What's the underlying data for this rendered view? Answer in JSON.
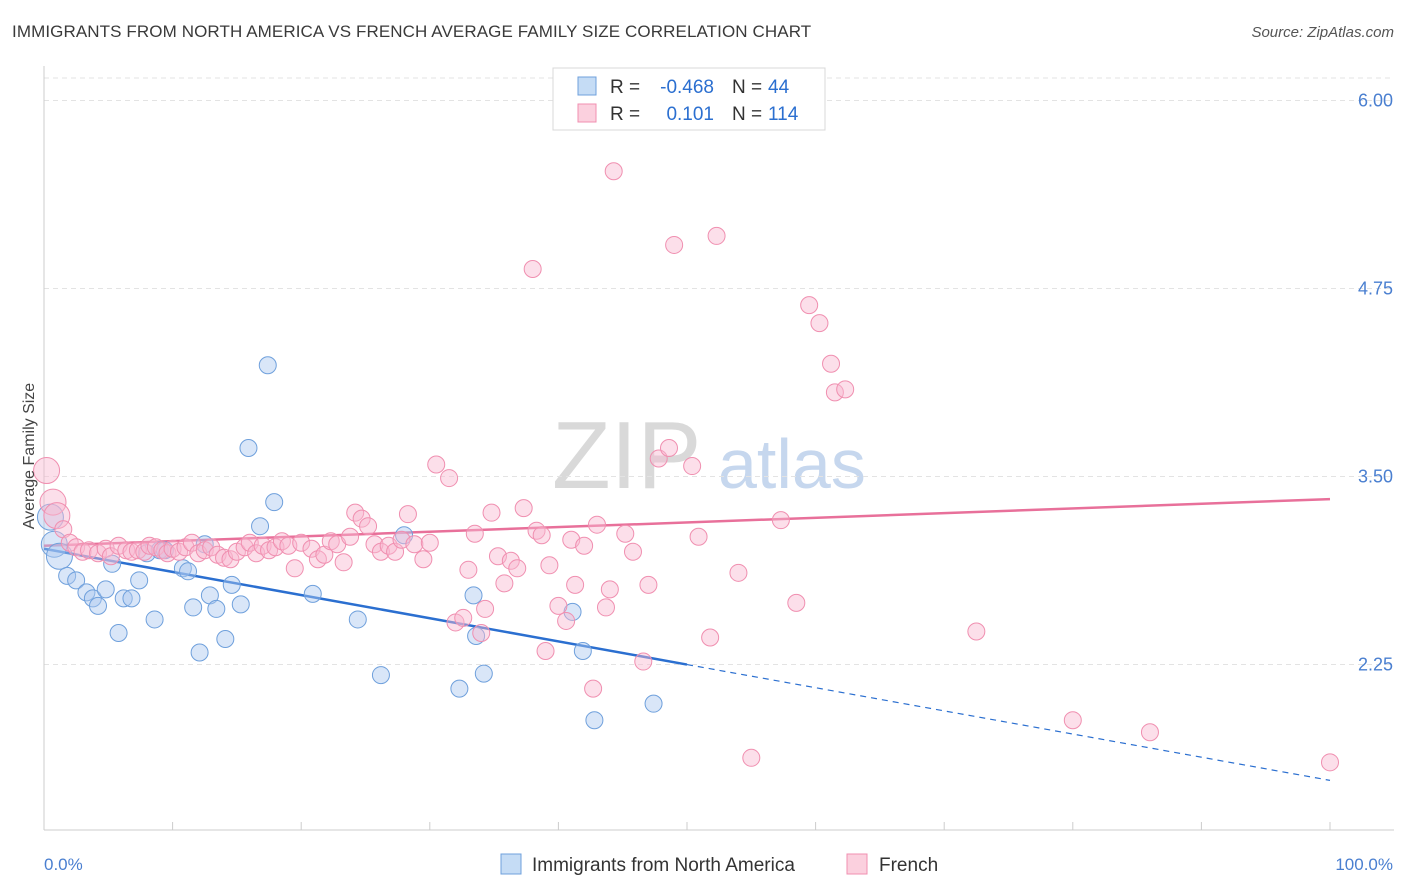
{
  "header": {
    "title": "IMMIGRANTS FROM NORTH AMERICA VS FRENCH AVERAGE FAMILY SIZE CORRELATION CHART",
    "source": "Source: ZipAtlas.com"
  },
  "watermark": {
    "zip": "ZIP",
    "atlas": "atlas"
  },
  "legend_stats": [
    {
      "r_label": "R =",
      "r_value": "-0.468",
      "n_label": "N =",
      "n_value": "44"
    },
    {
      "r_label": "R =",
      "r_value": "0.101",
      "n_label": "N =",
      "n_value": "114"
    }
  ],
  "colors": {
    "blue": "#6fa0dc",
    "blue_line": "#2b6fd0",
    "pink": "#f08fb0",
    "pink_line": "#e8709a",
    "tick_label": "#4a7fd0"
  },
  "chart_data": {
    "type": "scatter",
    "title": "IMMIGRANTS FROM NORTH AMERICA VS FRENCH AVERAGE FAMILY SIZE CORRELATION CHART",
    "xlabel": "",
    "ylabel": "Average Family Size",
    "xlim": [
      0,
      100
    ],
    "ylim": [
      1.15,
      6.15
    ],
    "x_tick_labels": [
      "0.0%",
      "100.0%"
    ],
    "y_ticks": [
      2.25,
      3.5,
      4.75,
      6.0
    ],
    "y_tick_labels": [
      "2.25",
      "3.50",
      "4.75",
      "6.00"
    ],
    "grid": true,
    "legend_position": "bottom-center",
    "series": [
      {
        "name": "Immigrants from North America",
        "color": "#6fa0dc",
        "trend": {
          "x": [
            0,
            50
          ],
          "y": [
            3.02,
            2.25
          ],
          "dashed_to": {
            "x": 100,
            "y": 1.48
          }
        },
        "points": [
          [
            0.5,
            3.23
          ],
          [
            0.8,
            3.05
          ],
          [
            1.2,
            2.97
          ],
          [
            1.8,
            2.84
          ],
          [
            2.5,
            2.81
          ],
          [
            3.3,
            2.73
          ],
          [
            3.8,
            2.69
          ],
          [
            4.2,
            2.64
          ],
          [
            4.8,
            2.75
          ],
          [
            5.3,
            2.92
          ],
          [
            5.8,
            2.46
          ],
          [
            6.2,
            2.69
          ],
          [
            6.8,
            2.69
          ],
          [
            7.4,
            2.81
          ],
          [
            8.0,
            2.99
          ],
          [
            8.6,
            2.55
          ],
          [
            9.0,
            3.01
          ],
          [
            9.4,
            3.01
          ],
          [
            10.8,
            2.89
          ],
          [
            11.2,
            2.87
          ],
          [
            11.6,
            2.63
          ],
          [
            12.1,
            2.33
          ],
          [
            12.5,
            3.05
          ],
          [
            12.9,
            2.71
          ],
          [
            13.4,
            2.62
          ],
          [
            14.6,
            2.78
          ],
          [
            14.1,
            2.42
          ],
          [
            15.3,
            2.65
          ],
          [
            15.9,
            3.69
          ],
          [
            16.8,
            3.17
          ],
          [
            17.4,
            4.24
          ],
          [
            17.9,
            3.33
          ],
          [
            20.9,
            2.72
          ],
          [
            24.4,
            2.55
          ],
          [
            26.2,
            2.18
          ],
          [
            28.0,
            3.11
          ],
          [
            32.3,
            2.09
          ],
          [
            33.4,
            2.71
          ],
          [
            33.6,
            2.44
          ],
          [
            34.2,
            2.19
          ],
          [
            41.1,
            2.6
          ],
          [
            41.9,
            2.34
          ],
          [
            42.8,
            1.88
          ],
          [
            47.4,
            1.99
          ]
        ]
      },
      {
        "name": "French",
        "color": "#f08fb0",
        "trend": {
          "x": [
            0,
            100
          ],
          "y": [
            3.04,
            3.35
          ]
        },
        "points": [
          [
            0.2,
            3.54
          ],
          [
            0.7,
            3.33
          ],
          [
            1.0,
            3.24
          ],
          [
            1.5,
            3.15
          ],
          [
            2.0,
            3.06
          ],
          [
            2.5,
            3.03
          ],
          [
            3.0,
            3.0
          ],
          [
            3.5,
            3.01
          ],
          [
            4.2,
            2.99
          ],
          [
            4.8,
            3.02
          ],
          [
            5.2,
            2.97
          ],
          [
            5.8,
            3.04
          ],
          [
            6.4,
            3.01
          ],
          [
            6.8,
            3.0
          ],
          [
            7.3,
            3.01
          ],
          [
            7.8,
            3.0
          ],
          [
            8.2,
            3.04
          ],
          [
            8.7,
            3.03
          ],
          [
            9.2,
            3.01
          ],
          [
            9.6,
            2.99
          ],
          [
            10.0,
            3.02
          ],
          [
            10.5,
            3.0
          ],
          [
            11.0,
            3.03
          ],
          [
            11.5,
            3.06
          ],
          [
            12.0,
            2.99
          ],
          [
            12.5,
            3.01
          ],
          [
            13.0,
            3.03
          ],
          [
            13.5,
            2.98
          ],
          [
            14.0,
            2.96
          ],
          [
            14.5,
            2.95
          ],
          [
            15.0,
            3.0
          ],
          [
            15.6,
            3.03
          ],
          [
            16.0,
            3.06
          ],
          [
            16.5,
            2.99
          ],
          [
            17.0,
            3.04
          ],
          [
            17.5,
            3.01
          ],
          [
            18.0,
            3.03
          ],
          [
            18.5,
            3.07
          ],
          [
            19.0,
            3.04
          ],
          [
            19.5,
            2.89
          ],
          [
            20.0,
            3.06
          ],
          [
            20.8,
            3.02
          ],
          [
            21.3,
            2.95
          ],
          [
            21.8,
            2.98
          ],
          [
            22.3,
            3.07
          ],
          [
            22.8,
            3.05
          ],
          [
            23.3,
            2.93
          ],
          [
            23.8,
            3.1
          ],
          [
            24.2,
            3.26
          ],
          [
            24.7,
            3.22
          ],
          [
            25.2,
            3.17
          ],
          [
            25.7,
            3.05
          ],
          [
            26.2,
            3.0
          ],
          [
            26.8,
            3.04
          ],
          [
            27.3,
            3.0
          ],
          [
            27.8,
            3.08
          ],
          [
            28.3,
            3.25
          ],
          [
            28.8,
            3.05
          ],
          [
            29.5,
            2.95
          ],
          [
            30.0,
            3.06
          ],
          [
            30.5,
            3.58
          ],
          [
            31.5,
            3.49
          ],
          [
            32.0,
            2.53
          ],
          [
            32.6,
            2.56
          ],
          [
            33.0,
            2.88
          ],
          [
            33.5,
            3.12
          ],
          [
            34.0,
            2.46
          ],
          [
            34.3,
            2.62
          ],
          [
            34.8,
            3.26
          ],
          [
            35.3,
            2.97
          ],
          [
            35.8,
            2.79
          ],
          [
            36.3,
            2.94
          ],
          [
            36.8,
            2.89
          ],
          [
            37.3,
            3.29
          ],
          [
            38.0,
            4.88
          ],
          [
            38.3,
            3.14
          ],
          [
            38.7,
            3.11
          ],
          [
            39.0,
            2.34
          ],
          [
            39.3,
            2.91
          ],
          [
            40.0,
            2.64
          ],
          [
            40.6,
            2.54
          ],
          [
            41.0,
            3.08
          ],
          [
            41.3,
            2.78
          ],
          [
            42.0,
            3.04
          ],
          [
            42.7,
            2.09
          ],
          [
            43.0,
            3.18
          ],
          [
            43.7,
            2.63
          ],
          [
            44.0,
            2.75
          ],
          [
            44.3,
            5.53
          ],
          [
            45.2,
            3.12
          ],
          [
            45.8,
            3.0
          ],
          [
            46.6,
            2.27
          ],
          [
            47.0,
            2.78
          ],
          [
            47.8,
            3.62
          ],
          [
            48.6,
            3.69
          ],
          [
            49.0,
            5.04
          ],
          [
            50.4,
            3.57
          ],
          [
            50.9,
            3.1
          ],
          [
            51.8,
            2.43
          ],
          [
            52.3,
            5.1
          ],
          [
            54.0,
            2.86
          ],
          [
            55.0,
            1.63
          ],
          [
            57.3,
            3.21
          ],
          [
            58.5,
            2.66
          ],
          [
            59.5,
            4.64
          ],
          [
            60.3,
            4.52
          ],
          [
            61.2,
            4.25
          ],
          [
            61.5,
            4.06
          ],
          [
            62.3,
            4.08
          ],
          [
            72.5,
            2.47
          ],
          [
            80.0,
            1.88
          ],
          [
            86.0,
            1.8
          ],
          [
            100.0,
            1.6
          ]
        ]
      }
    ]
  },
  "bottom_legend": [
    {
      "label": "Immigrants from North America"
    },
    {
      "label": "French"
    }
  ]
}
